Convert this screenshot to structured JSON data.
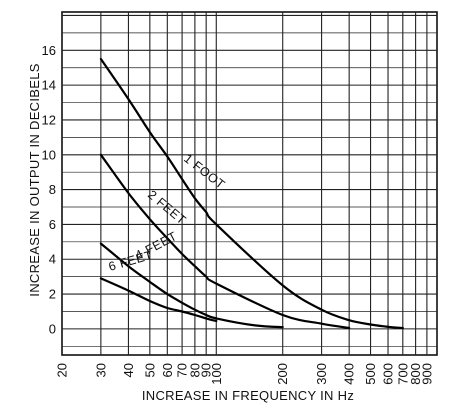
{
  "chart_data": {
    "type": "line",
    "title": "",
    "xlabel": "INCREASE IN FREQUENCY IN Hz",
    "ylabel": "INCREASE IN OUTPUT IN DECIBELS",
    "x_scale": "log",
    "xlim": [
      20,
      1000
    ],
    "ylim": [
      -1.5,
      18.2
    ],
    "grid": true,
    "x_ticks": [
      20,
      30,
      40,
      50,
      60,
      70,
      80,
      90,
      100,
      200,
      300,
      400,
      500,
      600,
      700,
      800,
      900
    ],
    "y_ticks": [
      0,
      2,
      4,
      6,
      8,
      10,
      12,
      14,
      16
    ],
    "series": [
      {
        "name": "1 FOOT",
        "points": [
          [
            30,
            15.5
          ],
          [
            40,
            13.2
          ],
          [
            50,
            11.3
          ],
          [
            60,
            9.9
          ],
          [
            70,
            8.6
          ],
          [
            80,
            7.5
          ],
          [
            90,
            6.7
          ],
          [
            100,
            6.0
          ],
          [
            200,
            2.5
          ],
          [
            300,
            1.1
          ],
          [
            400,
            0.5
          ],
          [
            500,
            0.25
          ],
          [
            600,
            0.12
          ],
          [
            700,
            0.05
          ]
        ]
      },
      {
        "name": "2 FEET",
        "points": [
          [
            30,
            10.0
          ],
          [
            40,
            7.8
          ],
          [
            50,
            6.3
          ],
          [
            60,
            5.2
          ],
          [
            70,
            4.3
          ],
          [
            80,
            3.6
          ],
          [
            90,
            3.0
          ],
          [
            100,
            2.6
          ],
          [
            200,
            0.8
          ],
          [
            300,
            0.3
          ],
          [
            400,
            0.05
          ]
        ]
      },
      {
        "name": "4 FEET",
        "points": [
          [
            30,
            4.9
          ],
          [
            40,
            3.6
          ],
          [
            50,
            2.7
          ],
          [
            60,
            2.0
          ],
          [
            70,
            1.5
          ],
          [
            80,
            1.1
          ],
          [
            90,
            0.8
          ],
          [
            100,
            0.6
          ],
          [
            150,
            0.2
          ],
          [
            200,
            0.1
          ]
        ]
      },
      {
        "name": "6 FEET",
        "points": [
          [
            30,
            2.9
          ],
          [
            40,
            2.2
          ],
          [
            50,
            1.6
          ],
          [
            60,
            1.2
          ],
          [
            70,
            1.0
          ],
          [
            80,
            0.8
          ],
          [
            90,
            0.6
          ],
          [
            100,
            0.45
          ]
        ]
      }
    ],
    "curve_labels": [
      "1 FOOT",
      "2 FEET",
      "4 FEET",
      "6 FEET"
    ]
  }
}
